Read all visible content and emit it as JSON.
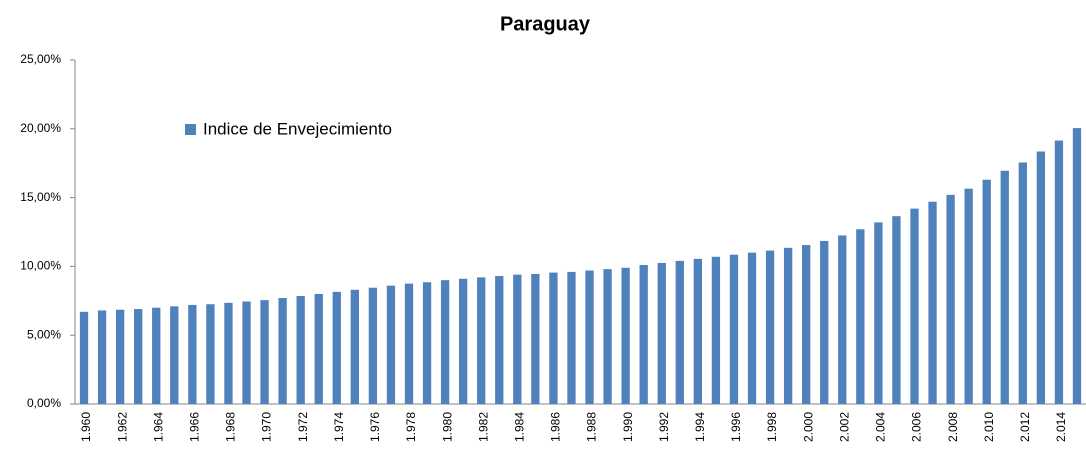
{
  "chart_data": {
    "type": "bar",
    "title": "Paraguay",
    "categories": [
      "1.960",
      null,
      "1.962",
      null,
      "1.964",
      null,
      "1.966",
      null,
      "1.968",
      null,
      "1.970",
      null,
      "1.972",
      null,
      "1.974",
      null,
      "1.976",
      null,
      "1.978",
      null,
      "1.980",
      null,
      "1.982",
      null,
      "1.984",
      null,
      "1.986",
      null,
      "1.988",
      null,
      "1.990",
      null,
      "1.992",
      null,
      "1.994",
      null,
      "1.996",
      null,
      "1.998",
      null,
      "2.000",
      null,
      "2.002",
      null,
      "2.004",
      null,
      "2.006",
      null,
      "2.008",
      null,
      "2.010",
      null,
      "2.012",
      null,
      "2.014",
      null
    ],
    "series": [
      {
        "name": "Indice de Envejecimiento",
        "color": "#4f81bd",
        "values": [
          6.7,
          6.8,
          6.85,
          6.9,
          7.0,
          7.1,
          7.2,
          7.25,
          7.35,
          7.45,
          7.55,
          7.7,
          7.85,
          8.0,
          8.15,
          8.3,
          8.45,
          8.6,
          8.75,
          8.85,
          9.0,
          9.1,
          9.2,
          9.3,
          9.4,
          9.45,
          9.55,
          9.6,
          9.7,
          9.8,
          9.9,
          10.1,
          10.25,
          10.4,
          10.55,
          10.7,
          10.85,
          11.0,
          11.15,
          11.35,
          11.55,
          11.85,
          12.25,
          12.7,
          13.2,
          13.65,
          14.2,
          14.7,
          15.2,
          15.65,
          16.3,
          16.95,
          17.55,
          18.35,
          19.15,
          20.05
        ]
      }
    ],
    "ylim": [
      0,
      25
    ],
    "yticks": [
      {
        "value": 0,
        "label": "0,00%"
      },
      {
        "value": 5,
        "label": "5,00%"
      },
      {
        "value": 10,
        "label": "10,00%"
      },
      {
        "value": 15,
        "label": "15,00%"
      },
      {
        "value": 20,
        "label": "20,00%"
      },
      {
        "value": 25,
        "label": "25,00%"
      }
    ],
    "grid": false,
    "legend": "upper left"
  }
}
